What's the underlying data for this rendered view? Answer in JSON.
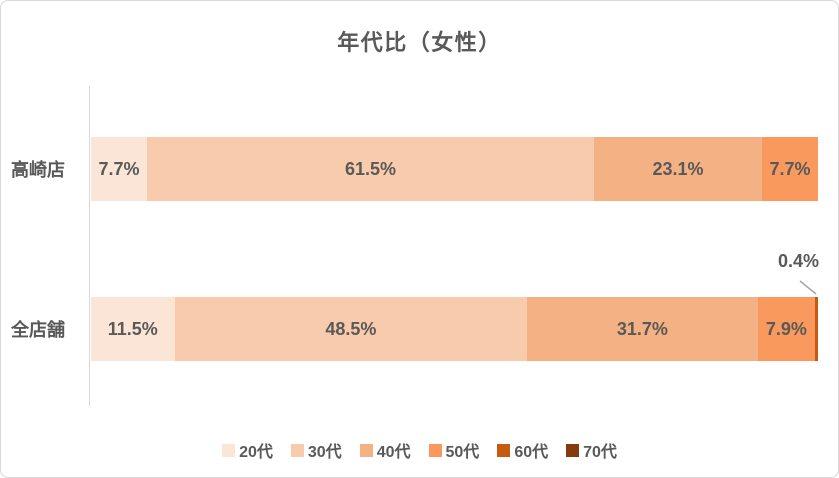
{
  "chart_data": {
    "type": "bar",
    "orientation": "horizontal-stacked",
    "title": "年代比（女性）",
    "categories": [
      "高崎店",
      "全店舗"
    ],
    "series": [
      {
        "name": "20代",
        "color": "#FBE5D6",
        "values": [
          7.7,
          11.5
        ]
      },
      {
        "name": "30代",
        "color": "#F8CBAD",
        "values": [
          61.5,
          48.5
        ]
      },
      {
        "name": "40代",
        "color": "#F4B183",
        "values": [
          23.1,
          31.7
        ]
      },
      {
        "name": "50代",
        "color": "#F9995D",
        "values": [
          7.7,
          7.9
        ]
      },
      {
        "name": "60代",
        "color": "#C55A11",
        "values": [
          0,
          0.4
        ]
      },
      {
        "name": "70代",
        "color": "#843C0C",
        "values": [
          0,
          0
        ]
      }
    ],
    "data_labels": {
      "高崎店": [
        "7.7%",
        "61.5%",
        "23.1%",
        "7.7%"
      ],
      "全店舗": [
        "11.5%",
        "48.5%",
        "31.7%",
        "7.9%",
        "0.4%"
      ]
    },
    "callout": {
      "category": "全店舗",
      "series": "60代",
      "label": "0.4%"
    },
    "value_format": "percent",
    "xlim": [
      0,
      100
    ],
    "legend_position": "bottom",
    "grid": false
  },
  "styles": {
    "text_color": "#595959",
    "axis_color": "#D9D9D9",
    "leader_line_color": "#A6A6A6",
    "background": "#FFFFFF"
  }
}
